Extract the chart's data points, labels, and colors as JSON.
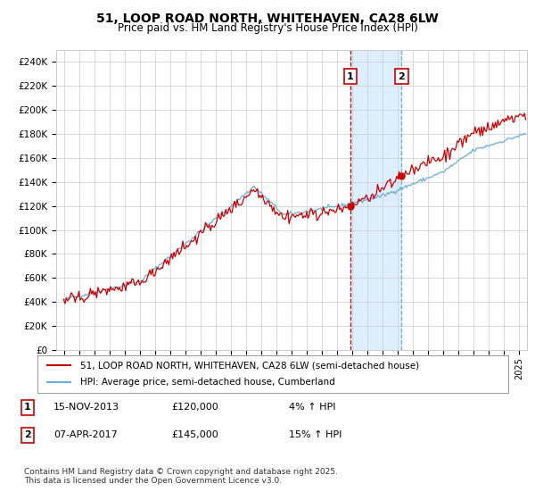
{
  "title": "51, LOOP ROAD NORTH, WHITEHAVEN, CA28 6LW",
  "subtitle": "Price paid vs. HM Land Registry's House Price Index (HPI)",
  "title_fontsize": 10,
  "subtitle_fontsize": 8.5,
  "ylim": [
    0,
    250000
  ],
  "yticks": [
    0,
    20000,
    40000,
    60000,
    80000,
    100000,
    120000,
    140000,
    160000,
    180000,
    200000,
    220000,
    240000
  ],
  "xstart_year": 1995,
  "xend_year": 2025,
  "sale1_date": "15-NOV-2013",
  "sale1_price": 120000,
  "sale1_label": "1",
  "sale1_pct": "4%",
  "sale1_x": 2013.875,
  "sale2_date": "07-APR-2017",
  "sale2_price": 145000,
  "sale2_label": "2",
  "sale2_pct": "15%",
  "sale2_x": 2017.25,
  "legend_line1": "51, LOOP ROAD NORTH, WHITEHAVEN, CA28 6LW (semi-detached house)",
  "legend_line2": "HPI: Average price, semi-detached house, Cumberland",
  "footnote": "Contains HM Land Registry data © Crown copyright and database right 2025.\nThis data is licensed under the Open Government Licence v3.0.",
  "hpi_color": "#6baed6",
  "price_color": "#cc0000",
  "shade_color": "#ddeeff",
  "vline1_color": "#cc0000",
  "vline2_color": "#6baed6",
  "grid_color": "#cccccc",
  "bg_color": "#ffffff"
}
